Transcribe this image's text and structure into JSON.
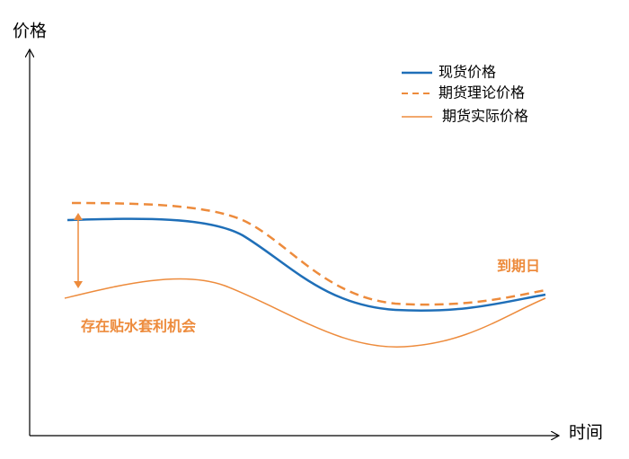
{
  "axes": {
    "y_label": "价格",
    "x_label": "时间"
  },
  "legend": {
    "items": [
      "现货价格",
      "期货理论价格",
      "期货实际价格"
    ]
  },
  "annotations": {
    "expiry": "到期日",
    "opportunity": "存在贴水套利机会"
  }
}
